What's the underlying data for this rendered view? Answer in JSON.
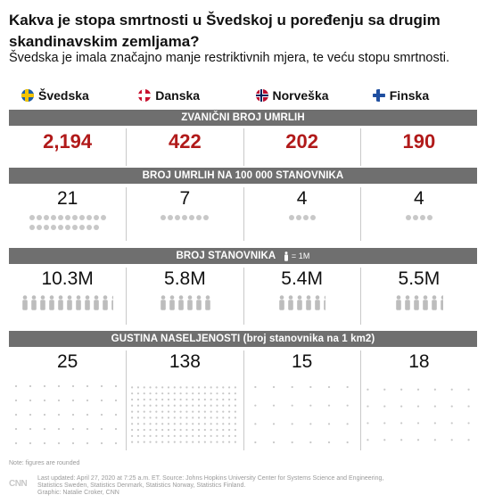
{
  "title": "Kakva je stopa smrtnosti u Švedskoj u poređenju sa drugim skandinavskim zemljama?",
  "subtitle": "Švedska je imala značajno manje restriktivnih mjera, te veću stopu smrtnosti.",
  "countries": [
    {
      "name": "Švedska",
      "flag": "sweden-flag-icon",
      "base": "#1f5fa8",
      "cross": "#f4c400"
    },
    {
      "name": "Danska",
      "flag": "denmark-flag-icon",
      "base": "#c8102e",
      "cross": "#ffffff"
    },
    {
      "name": "Norveška",
      "flag": "norway-flag-icon",
      "base": "#ba0c2f",
      "cross": "#ffffff",
      "inner": "#00205b"
    },
    {
      "name": "Finska",
      "flag": "finland-flag-icon",
      "base": "#ffffff",
      "cross": "#1f4fa0"
    }
  ],
  "sections": {
    "deaths": {
      "label": "ZVANIČNI BROJ UMRLIH",
      "values": [
        "2,194",
        "422",
        "202",
        "190"
      ]
    },
    "per100k": {
      "label": "BROJ UMRLIH NA 100 000 STANOVNIKA",
      "values": [
        "21",
        "7",
        "4",
        "4"
      ],
      "dot_counts": [
        21,
        7,
        4,
        4
      ]
    },
    "population": {
      "label": "BROJ STANOVNIKA",
      "legend": "= 1M",
      "values": [
        "10.3M",
        "5.8M",
        "5.4M",
        "5.5M"
      ],
      "person_counts": [
        10.3,
        5.8,
        5.4,
        5.5
      ]
    },
    "density": {
      "label": "GUSTINA NASELJENOSTI (broj stanovnika na 1 km2)",
      "values": [
        "25",
        "138",
        "15",
        "18"
      ],
      "densities": [
        25,
        138,
        15,
        18
      ]
    }
  },
  "colors": {
    "red": "#b11a1a",
    "band": "#6f6f6f",
    "dot": "#c8c8c8",
    "person": "#bdbdbd"
  },
  "footer": {
    "note": "Note: figures are rounded",
    "logo": "CNN",
    "source_line1": "Last updated: April 27, 2020 at 7:25 a.m. ET. Source: Johns Hopkins University Center for Systems Science and Engineering,",
    "source_line2": "Statistics Sweden, Statistics Denmark, Statistics Norway, Statistics Finland.",
    "source_line3": "Graphic: Natalie Croker, CNN"
  }
}
